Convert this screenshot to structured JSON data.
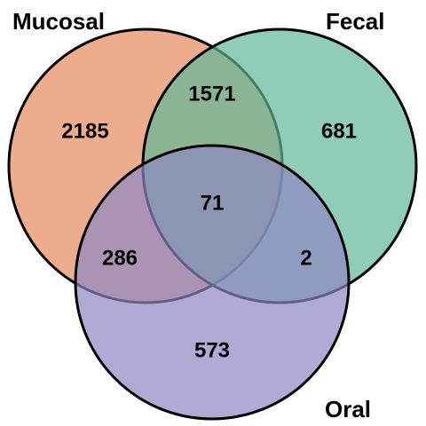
{
  "sets": {
    "mucosal": {
      "label": "Mucosal",
      "color": "#e58a5c"
    },
    "fecal": {
      "label": "Fecal",
      "color": "#5fb898"
    },
    "oral": {
      "label": "Oral",
      "color": "#8e87c3"
    }
  },
  "regions": {
    "mucosal_only": "2185",
    "fecal_only": "681",
    "oral_only": "573",
    "mucosal_fecal": "1571",
    "mucosal_oral": "286",
    "fecal_oral": "2",
    "all_three": "71"
  },
  "style": {
    "outline_color": "#000000",
    "fill_opacity": 0.7
  }
}
